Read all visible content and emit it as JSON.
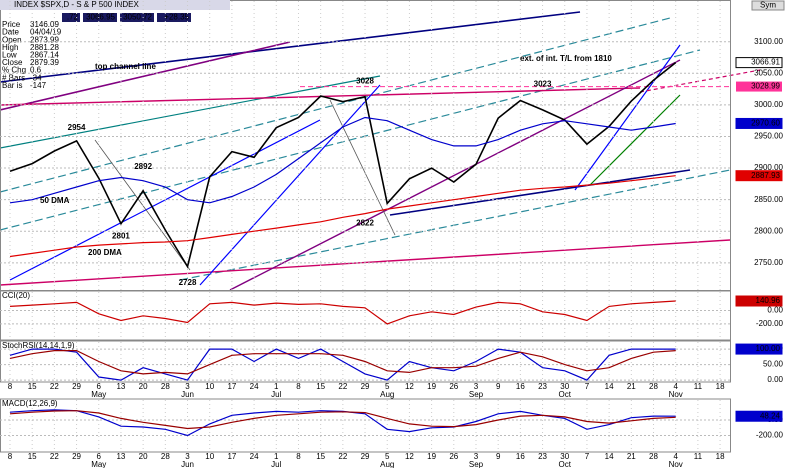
{
  "header": {
    "title": "INDEX $SPX,D - S & P 500 INDEX",
    "readouts": [
      ".72",
      "3066.95",
      "3050.72",
      "+28.35"
    ],
    "button": "Sym"
  },
  "info": {
    "rows": [
      [
        "Price",
        "3146.09"
      ],
      [
        "Date",
        "04/04/19"
      ],
      [
        "Open",
        "2873.99"
      ],
      [
        "High",
        "2881.28"
      ],
      [
        "Low",
        "2867.14"
      ],
      [
        "Close",
        "2879.39"
      ],
      [
        "% Chg",
        "0.6"
      ],
      [
        "# Bars",
        "-34"
      ],
      [
        "Bar is",
        "-147"
      ]
    ]
  },
  "chart_data": [
    {
      "type": "line",
      "categories": [
        "8",
        "15",
        "22",
        "29",
        "6",
        "13",
        "20",
        "28",
        "3",
        "10",
        "17",
        "24",
        "1",
        "8",
        "15",
        "22",
        "29",
        "5",
        "12",
        "19",
        "26",
        "3",
        "9",
        "16",
        "23",
        "30",
        "7",
        "14",
        "21",
        "28",
        "4",
        "11",
        "18"
      ],
      "month_labels": [
        {
          "label": "May",
          "category": 4
        },
        {
          "label": "Jun",
          "category": 8
        },
        {
          "label": "Jul",
          "category": 12
        },
        {
          "label": "Aug",
          "category": 17
        },
        {
          "label": "Sep",
          "category": 21
        },
        {
          "label": "Oct",
          "category": 25
        },
        {
          "label": "Nov",
          "category": 30
        }
      ],
      "ylim": [
        2707,
        3166
      ],
      "yticks": [
        {
          "value": 2750,
          "label": "2750.00"
        },
        {
          "value": 2800,
          "label": "2800.00"
        },
        {
          "value": 2850,
          "label": "2850.00"
        },
        {
          "value": 2900,
          "label": "2900.00"
        },
        {
          "value": 2950,
          "label": "2950.00"
        },
        {
          "value": 3000,
          "label": "3000.00"
        },
        {
          "value": 3050,
          "label": "3050.00"
        },
        {
          "value": 3100,
          "label": "3100.00"
        }
      ],
      "series": [
        {
          "color": "#000000",
          "tag": true,
          "values": [
            2895,
            2907,
            2927,
            2943,
            2884,
            2812,
            2864,
            2802,
            2744,
            2886,
            2926,
            2917,
            2964,
            2980,
            3014,
            3005,
            3013,
            2844,
            2883,
            2900,
            2878,
            2906,
            2979,
            3007,
            2992,
            2976,
            2938,
            2966,
            3006,
            3039,
            3066.91,
            null,
            null
          ]
        },
        {
          "name": "50 DMA",
          "color": "#0000cc",
          "tag": true,
          "values": [
            2845,
            2850,
            2860,
            2870,
            2880,
            2885,
            2880,
            2870,
            2850,
            2845,
            2855,
            2870,
            2890,
            2915,
            2940,
            2965,
            2980,
            2975,
            2960,
            2945,
            2935,
            2935,
            2945,
            2960,
            2970,
            2975,
            2970,
            2965,
            2960,
            2965,
            2970.6,
            null,
            null
          ],
          "value_labels": [
            null,
            null,
            null,
            null,
            null,
            null,
            null,
            null,
            null,
            null,
            null,
            null,
            null,
            null,
            null,
            null,
            null,
            null,
            null,
            null,
            null,
            null,
            null,
            null,
            null,
            null,
            null,
            null,
            null,
            null,
            "2970.60",
            null,
            null
          ]
        },
        {
          "name": "200 DMA",
          "color": "#e00000",
          "tag": true,
          "values": [
            2760,
            2765,
            2770,
            2775,
            2778,
            2780,
            2782,
            2783,
            2785,
            2790,
            2795,
            2800,
            2805,
            2810,
            2815,
            2822,
            2828,
            2835,
            2840,
            2845,
            2850,
            2855,
            2860,
            2865,
            2868,
            2870,
            2873,
            2876,
            2880,
            2884,
            2887.93,
            null,
            null
          ]
        }
      ],
      "levels": [
        {
          "value": 3028.99,
          "color": "#ff3399"
        }
      ],
      "peaks": [
        {
          "category": 3,
          "value": 2954
        },
        {
          "category": 8,
          "value": 2728
        },
        {
          "category": 16,
          "value": 3028
        },
        {
          "category": 16,
          "value": 2822
        },
        {
          "category": 24,
          "value": 3023
        },
        {
          "category": 6,
          "value": 2892
        },
        {
          "category": 5,
          "value": 2801
        }
      ],
      "annotations": [
        "top channel line",
        "ext. of int. T/L from 1810"
      ]
    },
    {
      "type": "line",
      "title": "CCI(20)",
      "ylim": [
        -440,
        290
      ],
      "yticks": [
        {
          "value": 0,
          "label": "0.00"
        },
        {
          "value": -200,
          "label": "-200.00"
        }
      ],
      "series": [
        {
          "color": "#cc0000",
          "tag": true,
          "values": [
            60,
            80,
            100,
            120,
            -50,
            -150,
            -80,
            -120,
            -180,
            100,
            120,
            80,
            110,
            90,
            100,
            60,
            40,
            -200,
            -80,
            -20,
            -60,
            50,
            120,
            100,
            -20,
            -60,
            -150,
            60,
            100,
            120,
            140.96,
            null,
            null
          ]
        }
      ]
    },
    {
      "type": "line",
      "title": "StochRSI(14,14,1,9)",
      "ylim": [
        -6,
        126
      ],
      "yticks": [
        {
          "value": 100,
          "label": "100.00"
        },
        {
          "value": 50,
          "label": "50.00"
        },
        {
          "value": 0,
          "label": "0.00"
        }
      ],
      "series": [
        {
          "color": "#0000cc",
          "tag": true,
          "values": [
            80,
            100,
            100,
            90,
            10,
            0,
            40,
            20,
            0,
            100,
            100,
            60,
            100,
            70,
            100,
            60,
            20,
            0,
            60,
            40,
            30,
            60,
            100,
            90,
            40,
            30,
            0,
            80,
            100,
            100,
            100,
            null,
            null
          ],
          "value_labels": [
            null,
            null,
            null,
            null,
            null,
            null,
            null,
            null,
            null,
            null,
            null,
            null,
            null,
            null,
            null,
            null,
            null,
            null,
            null,
            null,
            null,
            null,
            null,
            null,
            null,
            null,
            null,
            null,
            null,
            null,
            "100.00",
            null,
            null
          ]
        },
        {
          "color": "#990000",
          "values": [
            70,
            85,
            95,
            95,
            60,
            30,
            20,
            25,
            20,
            50,
            80,
            85,
            85,
            85,
            85,
            80,
            60,
            30,
            25,
            40,
            40,
            45,
            70,
            90,
            75,
            50,
            30,
            40,
            70,
            90,
            95,
            null,
            null
          ]
        }
      ]
    },
    {
      "type": "line",
      "title": "MACD(12,26,9)",
      "ylim": [
        -412,
        270
      ],
      "yticks": [
        {
          "value": 0,
          "label": "0.00"
        },
        {
          "value": -200,
          "label": "-200.00"
        }
      ],
      "series": [
        {
          "color": "#0000cc",
          "tag": true,
          "values": [
            100,
            120,
            130,
            120,
            40,
            -80,
            -90,
            -120,
            -200,
            -50,
            60,
            90,
            110,
            100,
            120,
            110,
            80,
            -120,
            -150,
            -100,
            -90,
            -20,
            80,
            110,
            60,
            20,
            -120,
            -60,
            30,
            50,
            48.24,
            null,
            null
          ]
        },
        {
          "color": "#990000",
          "values": [
            80,
            100,
            115,
            120,
            90,
            20,
            -30,
            -70,
            -110,
            -90,
            -30,
            20,
            60,
            80,
            100,
            105,
            95,
            20,
            -50,
            -80,
            -85,
            -60,
            0,
            50,
            60,
            40,
            -20,
            -40,
            -10,
            20,
            35,
            null,
            null
          ]
        }
      ]
    }
  ]
}
